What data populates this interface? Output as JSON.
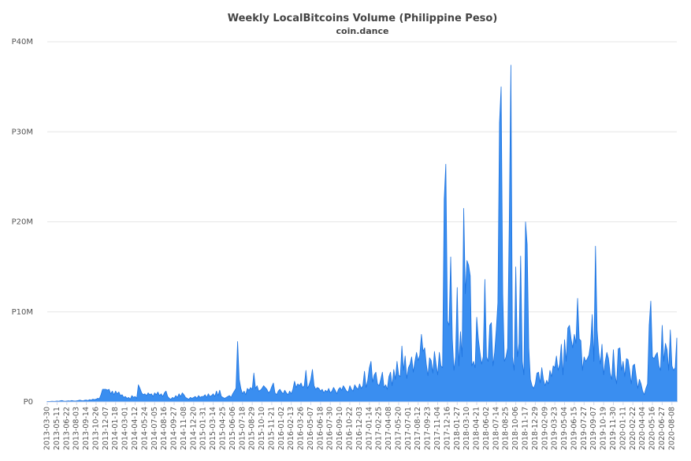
{
  "chart_data": {
    "type": "area",
    "title": "Weekly LocalBitcoins Volume (Philippine Peso)",
    "subtitle": "coin.dance",
    "color": "#3a8ef0",
    "line_color": "#1f74e0",
    "grid": true,
    "ylim": [
      0,
      40
    ],
    "yticks": [
      {
        "value": 0,
        "label": "P0"
      },
      {
        "value": 10,
        "label": "P10M"
      },
      {
        "value": 20,
        "label": "P20M"
      },
      {
        "value": 30,
        "label": "P30M"
      },
      {
        "value": 40,
        "label": "P40M"
      }
    ],
    "categories": [
      "2013-03-30",
      null,
      null,
      null,
      null,
      null,
      "2013-05-11",
      null,
      null,
      null,
      null,
      null,
      "2013-06-22",
      null,
      null,
      null,
      null,
      null,
      "2013-08-03",
      null,
      null,
      null,
      null,
      null,
      "2013-09-14",
      null,
      null,
      null,
      null,
      null,
      "2013-10-26",
      null,
      null,
      null,
      null,
      null,
      "2013-12-07",
      null,
      null,
      null,
      null,
      null,
      "2014-01-18",
      null,
      null,
      null,
      null,
      null,
      "2014-03-01",
      null,
      null,
      null,
      null,
      null,
      "2014-04-12",
      null,
      null,
      null,
      null,
      null,
      "2014-05-24",
      null,
      null,
      null,
      null,
      null,
      "2014-07-05",
      null,
      null,
      null,
      null,
      null,
      "2014-08-16",
      null,
      null,
      null,
      null,
      null,
      "2014-09-27",
      null,
      null,
      null,
      null,
      null,
      "2014-11-08",
      null,
      null,
      null,
      null,
      null,
      "2014-12-20",
      null,
      null,
      null,
      null,
      null,
      "2015-01-31",
      null,
      null,
      null,
      null,
      null,
      "2015-03-14",
      null,
      null,
      null,
      null,
      null,
      "2015-04-25",
      null,
      null,
      null,
      null,
      null,
      "2015-06-06",
      null,
      null,
      null,
      null,
      null,
      "2015-07-18",
      null,
      null,
      null,
      null,
      null,
      "2015-08-29",
      null,
      null,
      null,
      null,
      null,
      "2015-10-10",
      null,
      null,
      null,
      null,
      null,
      "2015-11-21",
      null,
      null,
      null,
      null,
      null,
      "2016-01-02",
      null,
      null,
      null,
      null,
      null,
      "2016-02-13",
      null,
      null,
      null,
      null,
      null,
      "2016-03-26",
      null,
      null,
      null,
      null,
      null,
      "2016-05-07",
      null,
      null,
      null,
      null,
      null,
      "2016-06-18",
      null,
      null,
      null,
      null,
      null,
      "2016-07-30",
      null,
      null,
      null,
      null,
      null,
      "2016-09-10",
      null,
      null,
      null,
      null,
      null,
      "2016-10-22",
      null,
      null,
      null,
      null,
      null,
      "2016-12-03",
      null,
      null,
      null,
      null,
      null,
      "2017-01-14",
      null,
      null,
      null,
      null,
      null,
      "2017-02-25",
      null,
      null,
      null,
      null,
      null,
      "2017-04-08",
      null,
      null,
      null,
      null,
      null,
      "2017-05-20",
      null,
      null,
      null,
      null,
      null,
      "2017-07-01",
      null,
      null,
      null,
      null,
      null,
      "2017-08-12",
      null,
      null,
      null,
      null,
      null,
      "2017-09-23",
      null,
      null,
      null,
      null,
      null,
      "2017-11-04",
      null,
      null,
      null,
      null,
      null,
      "2017-12-16",
      null,
      null,
      null,
      null,
      null,
      "2018-01-27",
      null,
      null,
      null,
      null,
      null,
      "2018-03-10",
      null,
      null,
      null,
      null,
      null,
      "2018-04-21",
      null,
      null,
      null,
      null,
      null,
      "2018-06-02",
      null,
      null,
      null,
      null,
      null,
      "2018-07-14",
      null,
      null,
      null,
      null,
      null,
      "2018-08-25",
      null,
      null,
      null,
      null,
      null,
      "2018-10-06",
      null,
      null,
      null,
      null,
      null,
      "2018-11-17",
      null,
      null,
      null,
      null,
      null,
      "2018-12-29",
      null,
      null,
      null,
      null,
      null,
      "2019-02-09",
      null,
      null,
      null,
      null,
      null,
      "2019-03-23",
      null,
      null,
      null,
      null,
      null,
      "2019-05-04",
      null,
      null,
      null,
      null,
      null,
      "2019-06-15",
      null,
      null,
      null,
      null,
      null,
      "2019-07-27",
      null,
      null,
      null,
      null,
      null,
      "2019-09-07",
      null,
      null,
      null,
      null,
      null,
      "2019-10-19",
      null,
      null,
      null,
      null,
      null,
      "2019-11-30",
      null,
      null,
      null,
      null,
      null,
      "2020-01-11",
      null,
      null,
      null,
      null,
      null,
      "2020-02-22",
      null,
      null,
      null,
      null,
      null,
      "2020-04-04",
      null,
      null,
      null,
      null,
      null,
      "2020-05-16",
      null,
      null,
      null,
      null,
      null,
      "2020-06-27",
      null,
      null,
      null,
      null,
      null,
      "2020-08-08",
      null,
      null,
      null
    ],
    "values": [
      0.05,
      0.05,
      0.06,
      0.08,
      0.06,
      0.07,
      0.1,
      0.08,
      0.12,
      0.15,
      0.1,
      0.08,
      0.1,
      0.12,
      0.1,
      0.15,
      0.12,
      0.1,
      0.12,
      0.15,
      0.2,
      0.15,
      0.12,
      0.18,
      0.2,
      0.15,
      0.25,
      0.2,
      0.3,
      0.25,
      0.3,
      0.4,
      0.35,
      0.8,
      1.4,
      1.4,
      1.4,
      1.3,
      1.4,
      0.9,
      1.2,
      0.8,
      1.2,
      0.9,
      1.1,
      0.7,
      0.8,
      0.5,
      0.6,
      0.4,
      0.5,
      0.3,
      0.7,
      0.5,
      0.6,
      0.4,
      1.9,
      1.5,
      1.0,
      0.8,
      0.9,
      0.7,
      1.0,
      0.8,
      0.9,
      0.6,
      1.0,
      0.8,
      1.1,
      0.7,
      0.9,
      0.6,
      1.0,
      1.2,
      0.6,
      0.4,
      0.3,
      0.5,
      0.4,
      0.7,
      0.5,
      0.9,
      0.6,
      1.0,
      0.8,
      0.5,
      0.4,
      0.3,
      0.5,
      0.4,
      0.5,
      0.6,
      0.4,
      0.7,
      0.5,
      0.6,
      0.6,
      0.8,
      0.5,
      0.9,
      0.6,
      0.7,
      0.9,
      0.6,
      1.2,
      0.7,
      1.3,
      0.6,
      0.5,
      0.4,
      0.5,
      0.6,
      0.7,
      0.5,
      0.9,
      1.2,
      1.5,
      6.7,
      2.5,
      1.5,
      0.9,
      1.2,
      0.8,
      1.5,
      1.3,
      1.6,
      1.4,
      3.2,
      1.5,
      1.8,
      1.2,
      1.3,
      1.5,
      1.8,
      1.6,
      1.4,
      1.0,
      1.2,
      1.7,
      2.1,
      1.0,
      0.8,
      1.2,
      1.4,
      1.1,
      0.9,
      1.3,
      1.0,
      0.8,
      1.2,
      0.9,
      1.4,
      2.3,
      1.6,
      2.0,
      1.8,
      2.1,
      1.6,
      1.8,
      3.5,
      1.5,
      1.9,
      2.5,
      3.6,
      1.8,
      1.4,
      1.6,
      1.5,
      1.2,
      1.4,
      1.0,
      1.3,
      1.1,
      1.5,
      1.0,
      1.2,
      1.6,
      1.3,
      0.9,
      1.4,
      1.6,
      1.3,
      1.8,
      1.5,
      1.2,
      1.1,
      1.8,
      1.4,
      1.2,
      1.9,
      1.6,
      1.4,
      2.0,
      1.5,
      1.8,
      3.4,
      1.6,
      2.4,
      3.8,
      4.5,
      2.2,
      3.0,
      3.3,
      2.0,
      1.8,
      2.5,
      3.3,
      1.6,
      1.9,
      1.4,
      2.8,
      3.3,
      1.8,
      3.6,
      2.5,
      4.5,
      3.0,
      2.8,
      6.2,
      3.5,
      5.1,
      2.6,
      3.8,
      4.2,
      5.0,
      3.3,
      4.5,
      5.5,
      4.6,
      5.2,
      7.5,
      5.6,
      6.0,
      4.2,
      2.9,
      4.9,
      4.6,
      3.2,
      5.6,
      4.2,
      3.0,
      5.5,
      4.0,
      3.8,
      22.5,
      26.4,
      9.0,
      8.5,
      16.1,
      7.0,
      3.5,
      5.0,
      12.7,
      4.0,
      7.8,
      5.0,
      21.5,
      12.0,
      15.7,
      15.2,
      14.0,
      4.0,
      4.5,
      3.8,
      9.4,
      7.0,
      5.5,
      4.2,
      5.0,
      13.6,
      5.0,
      4.5,
      8.5,
      8.8,
      4.0,
      5.5,
      8.0,
      11.0,
      31.0,
      35.0,
      12.0,
      4.5,
      5.0,
      6.0,
      20.0,
      37.4,
      5.0,
      3.5,
      15.0,
      5.0,
      6.5,
      16.2,
      4.5,
      3.0,
      20.0,
      17.5,
      6.0,
      2.5,
      1.8,
      1.5,
      2.0,
      3.2,
      3.3,
      2.1,
      3.8,
      2.5,
      1.8,
      2.4,
      2.0,
      3.5,
      2.8,
      4.0,
      3.8,
      5.1,
      3.5,
      4.2,
      6.4,
      3.0,
      6.9,
      4.5,
      8.2,
      8.5,
      7.0,
      6.0,
      7.5,
      6.5,
      11.5,
      7.0,
      6.8,
      3.5,
      5.0,
      4.5,
      4.8,
      5.2,
      6.5,
      9.7,
      4.5,
      17.3,
      8.0,
      5.5,
      4.2,
      6.4,
      3.0,
      4.5,
      5.5,
      4.8,
      3.2,
      2.5,
      5.8,
      3.0,
      2.0,
      5.9,
      6.0,
      3.5,
      4.5,
      2.8,
      4.8,
      4.7,
      3.5,
      2.0,
      4.0,
      4.2,
      2.8,
      1.5,
      2.5,
      2.0,
      1.2,
      0.8,
      1.5,
      2.0,
      8.5,
      11.2,
      5.0,
      4.8,
      5.2,
      5.5,
      4.0,
      3.5,
      8.5,
      4.5,
      6.5,
      5.8,
      3.5,
      8.0,
      4.0,
      3.5,
      3.8,
      7.1
    ]
  }
}
